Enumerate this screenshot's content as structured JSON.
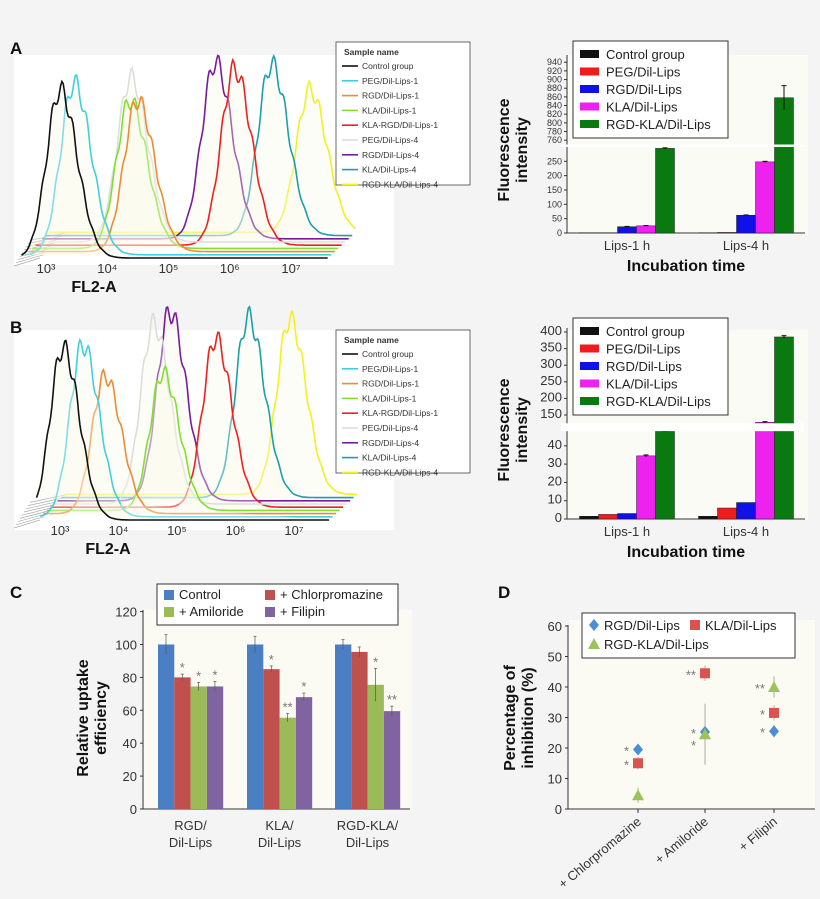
{
  "chart_data": [
    {
      "panel": "A",
      "type": "line",
      "description_kind": "flow cytometry histograms",
      "xlabel": "FL2-A",
      "x_scale": "log",
      "xlim": [
        1000,
        10000000
      ],
      "x_ticks": [
        "10³",
        "10⁴",
        "10⁵",
        "10⁶",
        "10⁷"
      ],
      "legend_title": "Sample name",
      "legend_placement": "top-right",
      "series": [
        {
          "name": "Control group",
          "color": "#111111",
          "peak_log10": 3.23,
          "rel_height": 1.0
        },
        {
          "name": "PEG/Dil-Lips-1",
          "color": "#3fd0e0",
          "peak_log10": 3.4,
          "rel_height": 1.02
        },
        {
          "name": "RGD/Dil-Lips-1",
          "color": "#f08a30",
          "peak_log10": 4.38,
          "rel_height": 0.9
        },
        {
          "name": "KLA/Dil-Lips-1",
          "color": "#80e030",
          "peak_log10": 4.2,
          "rel_height": 0.88
        },
        {
          "name": "KLA-RGD/Dil-Lips-1",
          "color": "#ee2020",
          "peak_log10": 5.85,
          "rel_height": 1.05
        },
        {
          "name": "PEG/Dil-Lips-4",
          "color": "#dddddd",
          "peak_log10": 4.1,
          "rel_height": 0.98
        },
        {
          "name": "RGD/Dil-Lips-4",
          "color": "#7a1a9a",
          "peak_log10": 5.42,
          "rel_height": 1.05
        },
        {
          "name": "KLA/Dil-Lips-4",
          "color": "#1aa0a8",
          "peak_log10": 6.28,
          "rel_height": 1.02
        },
        {
          "name": "RGD-KLA/Dil-Lips-4",
          "color": "#f4f020",
          "peak_log10": 6.85,
          "rel_height": 0.85
        }
      ]
    },
    {
      "panel": "A",
      "type": "bar",
      "ylabel": "Fluorescence intensity",
      "xlabel": "Incubation time",
      "categories": [
        "Lips-1 h",
        "Lips-4 h"
      ],
      "y_axis_break": [
        300,
        750
      ],
      "y_ticks_low": [
        0,
        50,
        100,
        150,
        200,
        250
      ],
      "y_ticks_high": [
        760,
        780,
        800,
        820,
        840,
        860,
        880,
        900,
        920,
        940
      ],
      "legend_placement": "top",
      "series": [
        {
          "name": "Control group",
          "color": "#111111",
          "values": [
            1,
            1
          ],
          "errors": [
            0,
            0
          ]
        },
        {
          "name": "PEG/Dil-Lips",
          "color": "#ee1c1c",
          "values": [
            1,
            2
          ],
          "errors": [
            0,
            0
          ]
        },
        {
          "name": "RGD/Dil-Lips",
          "color": "#1010e8",
          "values": [
            22,
            62
          ],
          "errors": [
            1,
            1
          ]
        },
        {
          "name": "KLA/Dil-Lips",
          "color": "#ee22ee",
          "values": [
            25,
            248
          ],
          "errors": [
            1,
            2
          ]
        },
        {
          "name": "RGD-KLA/Dil-Lips",
          "color": "#0a7a10",
          "values": [
            295,
            858
          ],
          "errors": [
            2,
            28
          ]
        }
      ]
    },
    {
      "panel": "B",
      "type": "line",
      "description_kind": "flow cytometry histograms",
      "xlabel": "FL2-A",
      "x_scale": "log",
      "xlim": [
        1000,
        10000000
      ],
      "x_ticks": [
        "10³",
        "10⁴",
        "10⁵",
        "10⁶",
        "10⁷"
      ],
      "legend_title": "Sample name",
      "legend_placement": "top-right",
      "series": [
        {
          "name": "Control group",
          "color": "#111111",
          "peak_log10": 3.05,
          "rel_height": 1.0
        },
        {
          "name": "PEG/Dil-Lips-1",
          "color": "#3fd0e0",
          "peak_log10": 3.33,
          "rel_height": 1.0
        },
        {
          "name": "RGD/Dil-Lips-1",
          "color": "#f08a30",
          "peak_log10": 3.65,
          "rel_height": 0.8
        },
        {
          "name": "KLA/Dil-Lips-1",
          "color": "#80e030",
          "peak_log10": 4.58,
          "rel_height": 0.8
        },
        {
          "name": "KLA-RGD/Dil-Lips-1",
          "color": "#ee2020",
          "peak_log10": 5.42,
          "rel_height": 0.98
        },
        {
          "name": "PEG/Dil-Lips-4",
          "color": "#dddddd",
          "peak_log10": 4.3,
          "rel_height": 1.05
        },
        {
          "name": "RGD/Dil-Lips-4",
          "color": "#7a1a9a",
          "peak_log10": 4.52,
          "rel_height": 1.1
        },
        {
          "name": "KLA/Dil-Lips-4",
          "color": "#1aa0a8",
          "peak_log10": 5.8,
          "rel_height": 1.05
        },
        {
          "name": "RGD-KLA/Dil-Lips-4",
          "color": "#f4f020",
          "peak_log10": 6.45,
          "rel_height": 1.02
        }
      ]
    },
    {
      "panel": "B",
      "type": "bar",
      "ylabel": "Fluorescence intensity",
      "xlabel": "Incubation time",
      "categories": [
        "Lips-1 h",
        "Lips-4 h"
      ],
      "y_axis_break": [
        48,
        125
      ],
      "y_ticks_low": [
        0,
        10,
        20,
        30,
        40
      ],
      "y_ticks_high": [
        150,
        200,
        250,
        300,
        350,
        400
      ],
      "legend_placement": "top",
      "series": [
        {
          "name": "Control group",
          "color": "#111111",
          "values": [
            1.5,
            1.5
          ],
          "errors": [
            0,
            0
          ]
        },
        {
          "name": "PEG/Dil-Lips",
          "color": "#ee1c1c",
          "values": [
            2.5,
            6
          ],
          "errors": [
            0,
            0
          ]
        },
        {
          "name": "RGD/Dil-Lips",
          "color": "#1010e8",
          "values": [
            3,
            9
          ],
          "errors": [
            0,
            0
          ]
        },
        {
          "name": "KLA/Dil-Lips",
          "color": "#ee22ee",
          "values": [
            34.5,
            128
          ],
          "errors": [
            0.5,
            2
          ]
        },
        {
          "name": "RGD-KLA/Dil-Lips",
          "color": "#0a7a10",
          "values": [
            122,
            385
          ],
          "errors": [
            2,
            4
          ]
        }
      ]
    },
    {
      "panel": "C",
      "type": "bar",
      "ylabel": "Relative uptake efficiency",
      "xlabel": "",
      "categories": [
        [
          "RGD/",
          "Dil-Lips"
        ],
        [
          "KLA/",
          "Dil-Lips"
        ],
        [
          "RGD-KLA/",
          "Dil-Lips"
        ]
      ],
      "ylim": [
        0,
        120
      ],
      "y_ticks": [
        0,
        20,
        40,
        60,
        80,
        100,
        120
      ],
      "legend_placement": "top",
      "series": [
        {
          "name": "Control",
          "color": "#4a7fc4",
          "values": [
            100,
            100,
            100
          ],
          "errors": [
            6,
            5,
            3
          ],
          "marks": [
            "",
            "",
            ""
          ]
        },
        {
          "name": "+ Chlorpromazine",
          "color": "#c0504d",
          "values": [
            80,
            85,
            95.5
          ],
          "errors": [
            2,
            2,
            3
          ],
          "marks": [
            "*",
            "*",
            ""
          ]
        },
        {
          "name": "+ Amiloride",
          "color": "#9bbb59",
          "values": [
            74.5,
            55.5,
            75.5
          ],
          "errors": [
            2.5,
            2.5,
            10
          ],
          "marks": [
            "*",
            "**",
            "*"
          ]
        },
        {
          "name": "+ Filipin",
          "color": "#8064a2",
          "values": [
            74.5,
            68,
            59.5
          ],
          "errors": [
            3,
            2.5,
            3
          ],
          "marks": [
            "*",
            "*",
            "**"
          ]
        }
      ]
    },
    {
      "panel": "D",
      "type": "scatter",
      "ylabel": "Percentage of inhibition (%)",
      "xlabel": "",
      "categories": [
        "+ Chlorpromazine",
        "+ Amiloride",
        "+ Filipin"
      ],
      "ylim": [
        0,
        60
      ],
      "y_ticks": [
        0,
        10,
        20,
        30,
        40,
        50,
        60
      ],
      "legend_placement": "top",
      "series": [
        {
          "name": "RGD/Dil-Lips",
          "color": "#4a8fd4",
          "marker": "diamond",
          "values": [
            19.5,
            25.3,
            25.5
          ],
          "errors": [
            1,
            1,
            2
          ],
          "marks": [
            "*",
            "*",
            "*"
          ]
        },
        {
          "name": "KLA/Dil-Lips",
          "color": "#d9534f",
          "marker": "square",
          "values": [
            15,
            44.5,
            31.5
          ],
          "errors": [
            2,
            2.5,
            2.5
          ],
          "marks": [
            "*",
            "**",
            "*"
          ]
        },
        {
          "name": "RGD-KLA/Dil-Lips",
          "color": "#9bc35a",
          "marker": "triangle",
          "values": [
            4.5,
            24.5,
            40
          ],
          "errors": [
            2.5,
            10,
            3.5
          ],
          "marks": [
            "",
            "*",
            "**"
          ]
        }
      ]
    }
  ],
  "panels": {
    "a": "A",
    "b": "B",
    "c": "C",
    "d": "D"
  }
}
